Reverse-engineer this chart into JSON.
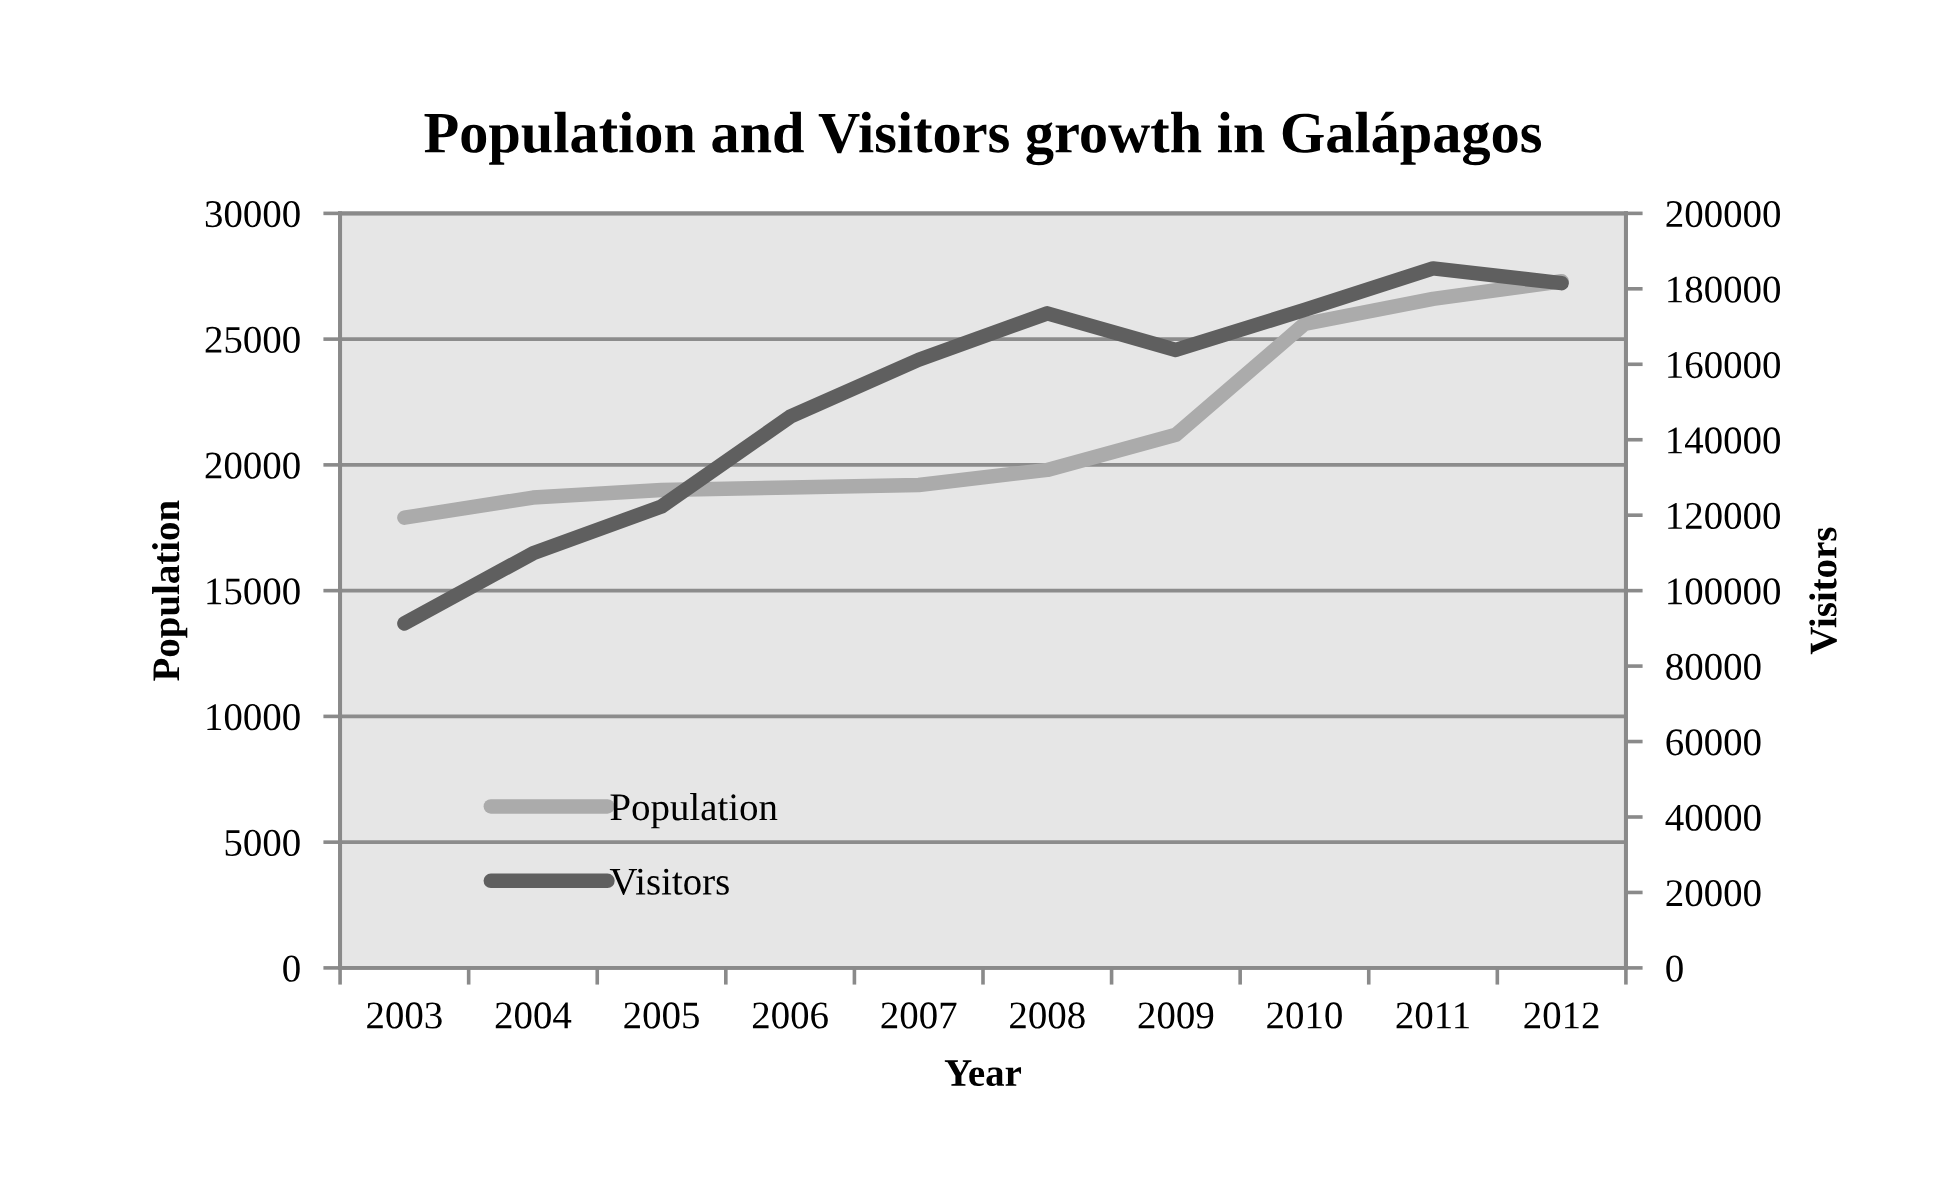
{
  "chart_data": {
    "type": "line",
    "title": "Population and Visitors growth in Galápagos",
    "xlabel": "Year",
    "ylabel": "Population",
    "y2label": "Visitors",
    "categories": [
      "2003",
      "2004",
      "2005",
      "2006",
      "2007",
      "2008",
      "2009",
      "2010",
      "2011",
      "2012"
    ],
    "series": [
      {
        "name": "Population",
        "color": "#ababab",
        "values": [
          17900,
          18700,
          19000,
          19100,
          19200,
          19800,
          21200,
          25600,
          26600,
          27300
        ]
      },
      {
        "name": "Visitors",
        "color": "#5f5f5f",
        "axis": "y2",
        "values": [
          91300,
          109900,
          122300,
          146100,
          161200,
          173500,
          163800,
          174400,
          185400,
          181500
        ]
      }
    ],
    "ylim": [
      0,
      30000
    ],
    "yticks": [
      0,
      5000,
      10000,
      15000,
      20000,
      25000,
      30000
    ],
    "y2lim": [
      0,
      200000
    ],
    "y2ticks": [
      0,
      20000,
      40000,
      60000,
      80000,
      100000,
      120000,
      140000,
      160000,
      180000,
      200000
    ],
    "grid": "y",
    "legend": "bottom left",
    "line_style": "solid"
  }
}
